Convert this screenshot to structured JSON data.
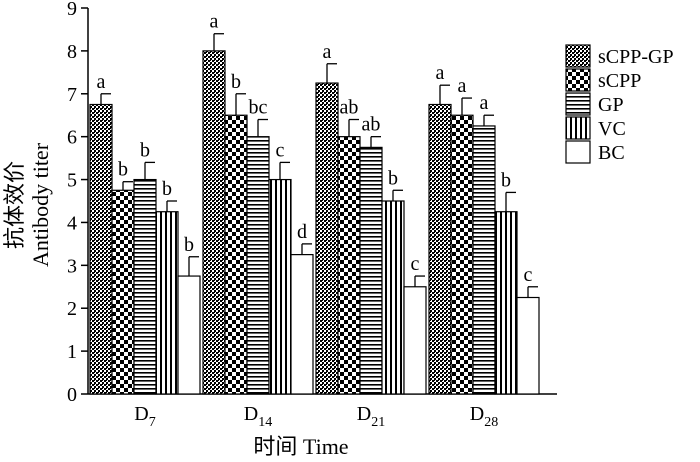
{
  "chart_data": {
    "type": "bar",
    "title": "",
    "xlabel": "时间 Time",
    "ylabel_cn": "抗体效价",
    "ylabel_en": "Antibody titer",
    "ylim": [
      0,
      9
    ],
    "yticks": [
      "0",
      "1",
      "2",
      "3",
      "4",
      "5",
      "6",
      "7",
      "8",
      "9"
    ],
    "legend_position": "right",
    "categories": [
      {
        "base": "D",
        "sub": "7"
      },
      {
        "base": "D",
        "sub": "14"
      },
      {
        "base": "D",
        "sub": "21"
      },
      {
        "base": "D",
        "sub": "28"
      }
    ],
    "series": [
      {
        "name": "sCPP-GP",
        "pattern": "dots-dense",
        "values": [
          6.75,
          8.0,
          7.25,
          6.75
        ],
        "errors": [
          0.25,
          0.4,
          0.45,
          0.45
        ],
        "labels": [
          "a",
          "a",
          "a",
          "a"
        ]
      },
      {
        "name": "sCPP",
        "pattern": "checker",
        "values": [
          4.75,
          6.5,
          6.0,
          6.5
        ],
        "errors": [
          0.2,
          0.5,
          0.4,
          0.4
        ],
        "labels": [
          "b",
          "b",
          "ab",
          "a"
        ]
      },
      {
        "name": "GP",
        "pattern": "hlines",
        "values": [
          5.0,
          6.0,
          5.75,
          6.25
        ],
        "errors": [
          0.4,
          0.4,
          0.25,
          0.25
        ],
        "labels": [
          "b",
          "bc",
          "ab",
          "a"
        ]
      },
      {
        "name": "VC",
        "pattern": "vlines",
        "values": [
          4.25,
          5.0,
          4.5,
          4.25
        ],
        "errors": [
          0.25,
          0.4,
          0.25,
          0.45
        ],
        "labels": [
          "b",
          "c",
          "b",
          "b"
        ]
      },
      {
        "name": "BC",
        "pattern": "solid-white",
        "values": [
          2.75,
          3.25,
          2.5,
          2.25
        ],
        "errors": [
          0.45,
          0.25,
          0.25,
          0.25
        ],
        "labels": [
          "b",
          "d",
          "c",
          "c"
        ]
      }
    ]
  }
}
